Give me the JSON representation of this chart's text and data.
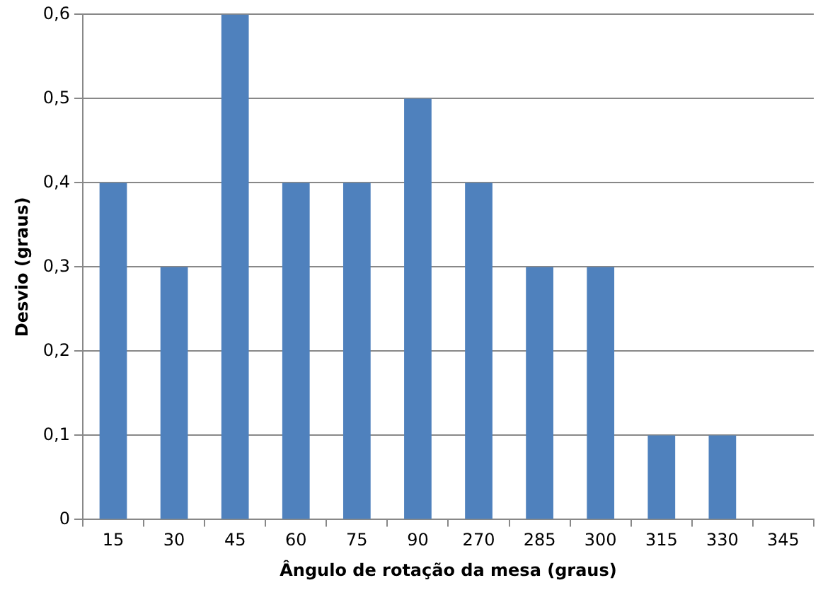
{
  "chart_data": {
    "type": "bar",
    "xlabel": "Ângulo de rotação da mesa (graus)",
    "ylabel": "Desvio (graus)",
    "categories": [
      "15",
      "30",
      "45",
      "60",
      "75",
      "90",
      "270",
      "285",
      "300",
      "315",
      "330",
      "345"
    ],
    "values": [
      0.4,
      0.3,
      0.6,
      0.4,
      0.4,
      0.5,
      0.4,
      0.3,
      0.3,
      0.1,
      0.1,
      0
    ],
    "color": "#4f81bd",
    "ylim": [
      0,
      0.6
    ],
    "yticks": [
      0,
      {
        "value": 0.1,
        "label": "0,1"
      },
      {
        "value": 0.2,
        "label": "0,2"
      },
      {
        "value": 0.3,
        "label": "0,3"
      },
      {
        "value": 0.4,
        "label": "0,4"
      },
      {
        "value": 0.5,
        "label": "0,5"
      },
      {
        "value": 0.6,
        "label": "0,6"
      }
    ],
    "grid": "y",
    "legend": false
  }
}
